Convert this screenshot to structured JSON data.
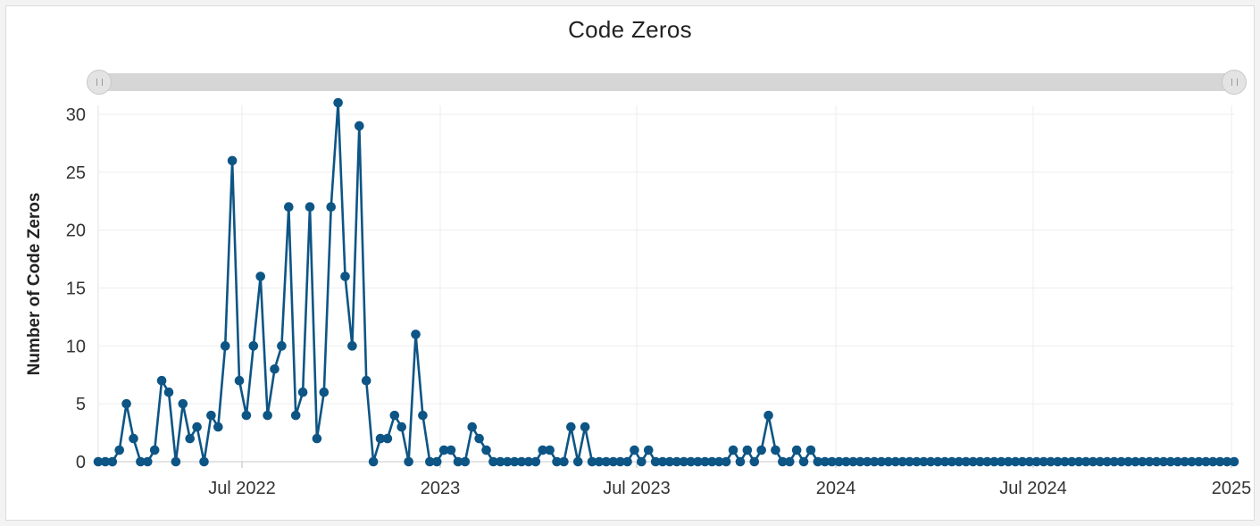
{
  "chart_data": {
    "type": "line",
    "title": "Code Zeros",
    "xlabel": "",
    "ylabel": "Number of Code Zeros",
    "ylim": [
      0,
      30
    ],
    "yticks": [
      "0",
      "5",
      "10",
      "15",
      "20",
      "25",
      "30"
    ],
    "xticks": [
      "Jul 2022",
      "2023",
      "Jul 2023",
      "2024",
      "Jul 2024",
      "2025"
    ],
    "grid": true,
    "legend": "none",
    "series_color": "#0d5585",
    "series": [
      {
        "values": [
          0,
          0,
          0,
          1,
          5,
          2,
          0,
          0,
          1,
          7,
          6,
          0,
          5,
          2,
          3,
          0,
          4,
          3,
          10,
          26,
          7,
          4,
          10,
          16,
          4,
          8,
          10,
          22,
          4,
          6,
          22,
          2,
          6,
          22,
          31,
          16,
          10,
          29,
          7,
          0,
          2,
          2,
          4,
          3,
          0,
          11,
          4,
          0,
          0,
          1,
          1,
          0,
          0,
          3,
          2,
          1,
          0,
          0,
          0,
          0,
          0,
          0,
          0,
          1,
          1,
          0,
          0,
          3,
          0,
          3,
          0,
          0,
          0,
          0,
          0,
          0,
          1,
          0,
          1,
          0,
          0,
          0,
          0,
          0,
          0,
          0,
          0,
          0,
          0,
          0,
          1,
          0,
          1,
          0,
          1,
          4,
          1,
          0,
          0,
          1,
          0,
          1,
          0,
          0,
          0,
          0,
          0,
          0,
          0,
          0,
          0,
          0,
          0,
          0,
          0,
          0,
          0,
          0,
          0,
          0,
          0,
          0,
          0,
          0,
          0,
          0,
          0,
          0,
          0,
          0,
          0,
          0,
          0,
          0,
          0,
          0,
          0,
          0,
          0,
          0,
          0,
          0,
          0,
          0,
          0,
          0,
          0,
          0,
          0,
          0,
          0,
          0,
          0,
          0,
          0,
          0,
          0,
          0,
          0,
          0,
          0,
          0
        ]
      }
    ]
  }
}
